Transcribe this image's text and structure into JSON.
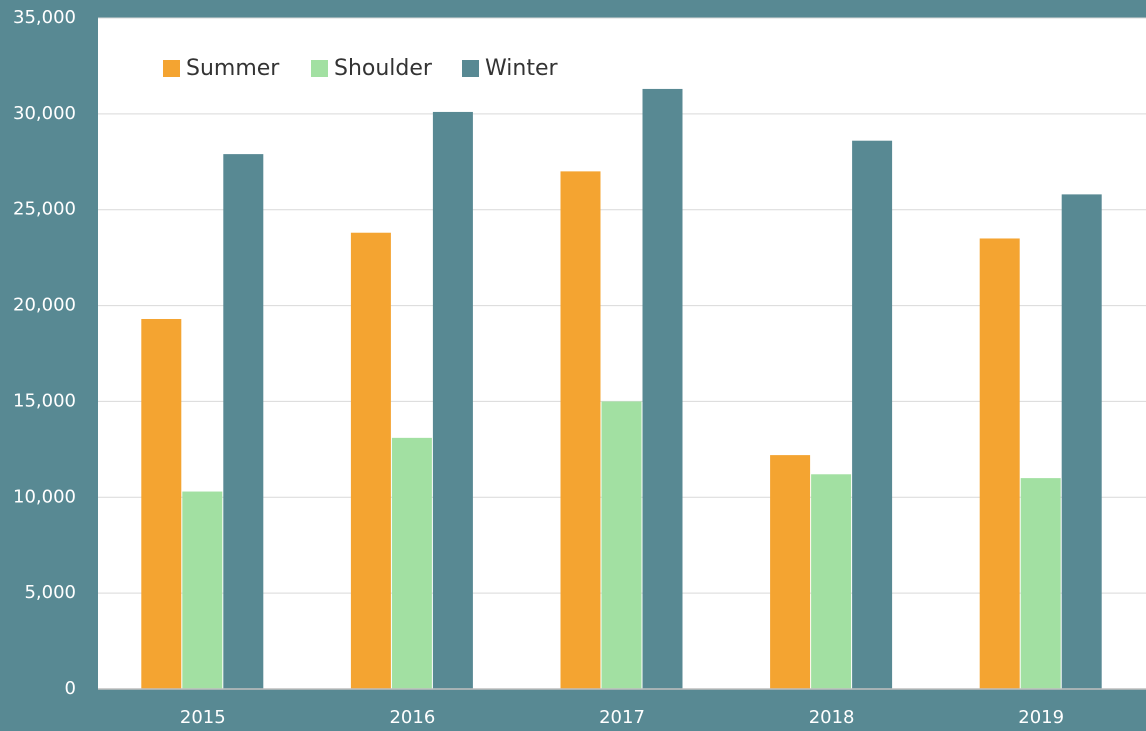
{
  "chart_data": {
    "type": "bar",
    "categories": [
      "2015",
      "2016",
      "2017",
      "2018",
      "2019"
    ],
    "series": [
      {
        "name": "Summer",
        "color": "#f4a431",
        "values": [
          19300,
          23800,
          27000,
          12200,
          23500
        ]
      },
      {
        "name": "Shoulder",
        "color": "#a2e0a2",
        "values": [
          10300,
          13100,
          15000,
          11200,
          11000
        ]
      },
      {
        "name": "Winter",
        "color": "#588993",
        "values": [
          27900,
          30100,
          31300,
          28600,
          25800
        ]
      }
    ],
    "ylim": [
      0,
      35000
    ],
    "yticks": [
      0,
      {
        "value": 5000,
        "label": "5,000"
      },
      {
        "value": 10000,
        "label": "10,000"
      },
      {
        "value": 15000,
        "label": "15,000"
      },
      {
        "value": 20000,
        "label": "20,000"
      },
      {
        "value": 25000,
        "label": "25,000"
      },
      {
        "value": 30000,
        "label": "30,000"
      },
      {
        "value": 35000,
        "label": "35,000"
      }
    ],
    "grid": true,
    "legend": "top-left"
  }
}
